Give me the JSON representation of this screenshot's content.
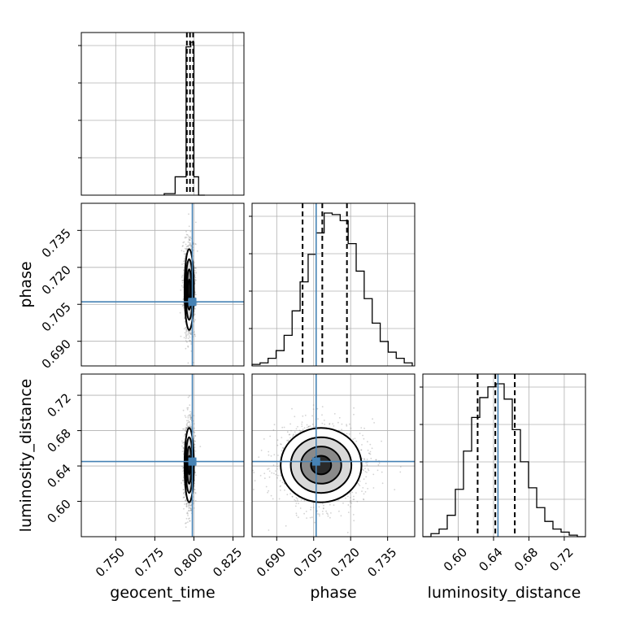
{
  "colors": {
    "truth": "#4682b4",
    "hist": "#000000",
    "grid": "#b0b0b0",
    "samples": "#808080"
  },
  "chart_data": [
    {
      "type": "histogram",
      "parameter": "geocent_time",
      "xlim": [
        0.728,
        0.832
      ],
      "bins": [
        {
          "x0": 0.781,
          "x1": 0.788,
          "count": 0.01
        },
        {
          "x0": 0.788,
          "x1": 0.795,
          "count": 0.12
        },
        {
          "x0": 0.795,
          "x1": 0.798,
          "count": 0.97
        },
        {
          "x0": 0.798,
          "x1": 0.8,
          "count": 1.0
        },
        {
          "x0": 0.8,
          "x1": 0.803,
          "count": 0.12
        },
        {
          "x0": 0.803,
          "x1": 0.807,
          "count": 0.0
        }
      ],
      "quantile_lines": [
        0.7955,
        0.7975,
        0.7995
      ],
      "truth": 0.799
    },
    {
      "type": "histogram",
      "parameter": "phase",
      "xlim": [
        0.68,
        0.746
      ],
      "bins_start": 0.68,
      "bin_width": 0.00325,
      "counts": [
        0.01,
        0.02,
        0.05,
        0.1,
        0.2,
        0.36,
        0.55,
        0.73,
        0.87,
        1.0,
        0.99,
        0.95,
        0.8,
        0.62,
        0.44,
        0.28,
        0.16,
        0.09,
        0.05,
        0.02
      ],
      "quantile_lines": [
        0.7005,
        0.7085,
        0.7185
      ],
      "truth": 0.706
    },
    {
      "type": "histogram",
      "parameter": "luminosity_distance",
      "xlim": [
        0.56,
        0.744
      ],
      "bins_start": 0.56,
      "bin_width": 0.0092,
      "counts": [
        0.0,
        0.02,
        0.05,
        0.14,
        0.31,
        0.56,
        0.78,
        0.91,
        0.98,
        1.0,
        0.9,
        0.7,
        0.49,
        0.32,
        0.19,
        0.1,
        0.05,
        0.03,
        0.01,
        0.0
      ],
      "quantile_lines": [
        0.622,
        0.642,
        0.664
      ],
      "truth": 0.645
    },
    {
      "type": "scatter_contour",
      "x": "geocent_time",
      "y": "phase",
      "xlim": [
        0.728,
        0.832
      ],
      "ylim": [
        0.68,
        0.746
      ],
      "center": [
        0.797,
        0.711
      ],
      "sigma": [
        0.0015,
        0.0082
      ],
      "contour_levels_sigma": [
        0.5,
        1.0,
        1.5,
        2.0
      ],
      "truth": [
        0.799,
        0.706
      ]
    },
    {
      "type": "scatter_contour",
      "x": "geocent_time",
      "y": "luminosity_distance",
      "xlim": [
        0.728,
        0.832
      ],
      "ylim": [
        0.56,
        0.744
      ],
      "center": [
        0.797,
        0.641
      ],
      "sigma": [
        0.0015,
        0.021
      ],
      "contour_levels_sigma": [
        0.5,
        1.0,
        1.5,
        2.0
      ],
      "truth": [
        0.799,
        0.645
      ]
    },
    {
      "type": "scatter_contour",
      "x": "phase",
      "y": "luminosity_distance",
      "xlim": [
        0.68,
        0.746
      ],
      "ylim": [
        0.56,
        0.744
      ],
      "center": [
        0.708,
        0.641
      ],
      "sigma": [
        0.0082,
        0.021
      ],
      "contour_levels_sigma": [
        0.5,
        1.0,
        1.5,
        2.0
      ],
      "truth": [
        0.706,
        0.645
      ]
    }
  ],
  "ticks": {
    "geocent_time": [
      0.75,
      0.775,
      0.8,
      0.825
    ],
    "phase": [
      0.69,
      0.705,
      0.72,
      0.735
    ],
    "luminosity_distance": [
      0.6,
      0.64,
      0.68,
      0.72
    ]
  },
  "tick_labels": {
    "geocent_time": [
      "0.750",
      "0.775",
      "0.800",
      "0.825"
    ],
    "phase": [
      "0.690",
      "0.705",
      "0.720",
      "0.735"
    ],
    "luminosity_distance": [
      "0.60",
      "0.64",
      "0.68",
      "0.72"
    ]
  },
  "axis_labels": {
    "x_geocent_time": "geocent_time",
    "x_phase": "phase",
    "x_luminosity_distance": "luminosity_distance",
    "y_phase": "phase",
    "y_luminosity_distance": "luminosity_distance"
  }
}
